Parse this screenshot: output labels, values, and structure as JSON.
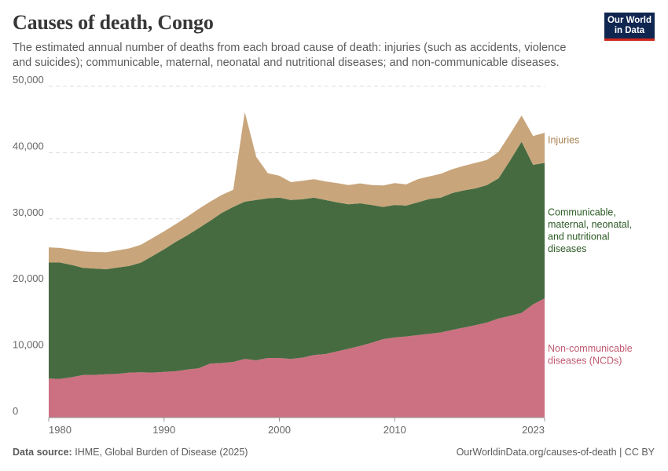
{
  "header": {
    "title": "Causes of death, Congo",
    "subtitle": "The estimated annual number of deaths from each broad cause of death: injuries (such as accidents, violence and suicides); communicable, maternal, neonatal and nutritional diseases; and non-communicable diseases.",
    "logo_line1": "Our World",
    "logo_line2": "in Data"
  },
  "footer": {
    "source_label": "Data source:",
    "source_text": "IHME, Global Burden of Disease (2025)",
    "url": "OurWorldinData.org/causes-of-death | CC BY"
  },
  "chart_data": {
    "type": "area",
    "stacked": true,
    "title": "Causes of death, Congo",
    "ylim": [
      0,
      50000
    ],
    "yticks": [
      0,
      10000,
      20000,
      30000,
      40000,
      50000
    ],
    "ytick_labels": [
      "0",
      "10,000",
      "20,000",
      "30,000",
      "40,000",
      "50,000"
    ],
    "xlim": [
      1980,
      2023
    ],
    "xticks": [
      1980,
      1990,
      2000,
      2010,
      2023
    ],
    "xtick_labels": [
      "1980",
      "1990",
      "2000",
      "2010",
      "2023"
    ],
    "x": [
      1980,
      1981,
      1982,
      1983,
      1984,
      1985,
      1986,
      1987,
      1988,
      1989,
      1990,
      1991,
      1992,
      1993,
      1994,
      1995,
      1996,
      1997,
      1998,
      1999,
      2000,
      2001,
      2002,
      2003,
      2004,
      2005,
      2006,
      2007,
      2008,
      2009,
      2010,
      2011,
      2012,
      2013,
      2014,
      2015,
      2016,
      2017,
      2018,
      2019,
      2020,
      2021,
      2022,
      2023
    ],
    "series": [
      {
        "name": "Non-communicable diseases (NCDs)",
        "legend_lines": [
          "Non-communicable",
          "diseases (NCDs)"
        ],
        "color": "#cc7182",
        "label_color": "#c05971",
        "values": [
          5900,
          5850,
          6100,
          6450,
          6450,
          6550,
          6600,
          6800,
          6850,
          6800,
          6900,
          7000,
          7250,
          7450,
          8150,
          8250,
          8400,
          8850,
          8650,
          9000,
          9000,
          8850,
          9050,
          9450,
          9600,
          10000,
          10400,
          10800,
          11300,
          11850,
          12100,
          12250,
          12450,
          12650,
          12850,
          13250,
          13600,
          13950,
          14350,
          14950,
          15350,
          15800,
          17100,
          18000
        ]
      },
      {
        "name": "Communicable, maternal, neonatal, and nutritional diseases",
        "legend_lines": [
          "Communicable,",
          "maternal, neonatal,",
          "and nutritional",
          "diseases"
        ],
        "color": "#476b40",
        "label_color": "#2b5a24",
        "values": [
          17500,
          17550,
          16950,
          16150,
          16050,
          15850,
          16050,
          16100,
          16550,
          17600,
          18500,
          19500,
          20250,
          21150,
          21550,
          22650,
          23400,
          23750,
          24200,
          24100,
          24200,
          24000,
          23900,
          23750,
          23250,
          22500,
          21800,
          21550,
          20800,
          19950,
          20000,
          19750,
          20050,
          20350,
          20350,
          20650,
          20700,
          20650,
          20750,
          21150,
          23450,
          25850,
          21050,
          20450
        ]
      },
      {
        "name": "Injuries",
        "legend_lines": [
          "Injuries"
        ],
        "color": "#c8a57b",
        "label_color": "#a78151",
        "values": [
          2300,
          2200,
          2300,
          2500,
          2500,
          2550,
          2600,
          2650,
          2700,
          2700,
          2700,
          2700,
          2800,
          2900,
          2900,
          2700,
          2600,
          13500,
          6500,
          3800,
          3300,
          2700,
          2800,
          2800,
          2800,
          2900,
          2900,
          3000,
          3000,
          3250,
          3300,
          3200,
          3500,
          3400,
          3600,
          3600,
          3700,
          3850,
          3800,
          4000,
          4000,
          3950,
          4350,
          4550
        ]
      }
    ]
  }
}
